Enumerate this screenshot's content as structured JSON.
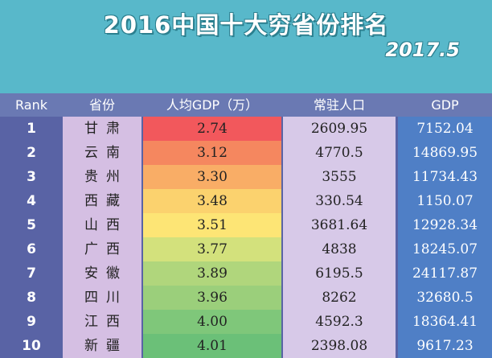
{
  "title": "2016中国十大穷省份排名",
  "date": "2017.5",
  "headers": {
    "rank": "Rank",
    "province": "省份",
    "per_capita_gdp": "人均GDP（万）",
    "population": "常驻人口",
    "gdp": "GDP"
  },
  "rows": [
    {
      "rank": "1",
      "province": "甘肃",
      "per_capita_gdp": "2.74",
      "population": "2609.95",
      "gdp": "7152.04",
      "color": "#f2585c"
    },
    {
      "rank": "2",
      "province": "云南",
      "per_capita_gdp": "3.12",
      "population": "4770.5",
      "gdp": "14869.95",
      "color": "#f5875f"
    },
    {
      "rank": "3",
      "province": "贵州",
      "per_capita_gdp": "3.30",
      "population": "3555",
      "gdp": "11734.43",
      "color": "#f9ad66"
    },
    {
      "rank": "4",
      "province": "西藏",
      "per_capita_gdp": "3.48",
      "population": "330.54",
      "gdp": "1150.07",
      "color": "#fbd26e"
    },
    {
      "rank": "5",
      "province": "山西",
      "per_capita_gdp": "3.51",
      "population": "3681.64",
      "gdp": "12928.34",
      "color": "#fde575"
    },
    {
      "rank": "6",
      "province": "广西",
      "per_capita_gdp": "3.77",
      "population": "4838",
      "gdp": "18245.07",
      "color": "#d3e17c"
    },
    {
      "rank": "7",
      "province": "安徽",
      "per_capita_gdp": "3.89",
      "population": "6195.5",
      "gdp": "24117.87",
      "color": "#b0d67c"
    },
    {
      "rank": "8",
      "province": "四川",
      "per_capita_gdp": "3.96",
      "population": "8262",
      "gdp": "32680.5",
      "color": "#9bcf7b"
    },
    {
      "rank": "9",
      "province": "江西",
      "per_capita_gdp": "4.00",
      "population": "4592.3",
      "gdp": "18364.41",
      "color": "#7fc77a"
    },
    {
      "rank": "10",
      "province": "新疆",
      "per_capita_gdp": "4.01",
      "population": "2398.08",
      "gdp": "9617.23",
      "color": "#6bc078"
    }
  ]
}
